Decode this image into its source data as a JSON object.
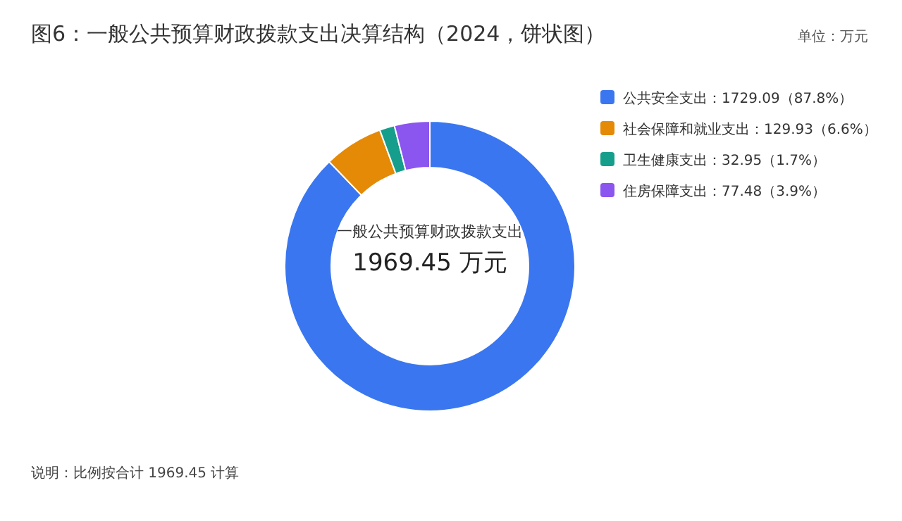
{
  "chart_data": {
    "type": "donut",
    "title": "图6：一般公共预算财政拨款支出决算结构（2024，饼状图）",
    "categories": [
      "公共安全支出",
      "社会保障和就业支出",
      "卫生健康支出",
      "住房保障支出"
    ],
    "values": [
      1729.09,
      129.93,
      32.95,
      77.48
    ],
    "colors": [
      "#3a76ef",
      "#e48a06",
      "#169e8c",
      "#8b55ef"
    ],
    "value_labels": [
      "：1729.09（87.8%）",
      "：129.93（6.6%）",
      "：32.95（1.7%）",
      "：77.48（3.9%）"
    ],
    "legend": "top right",
    "annotations": [
      "一般公共预算财政拨款支出",
      "1969.45 万元",
      "单位：万元",
      "说明：比例按合计 1969.45 计算"
    ]
  }
}
